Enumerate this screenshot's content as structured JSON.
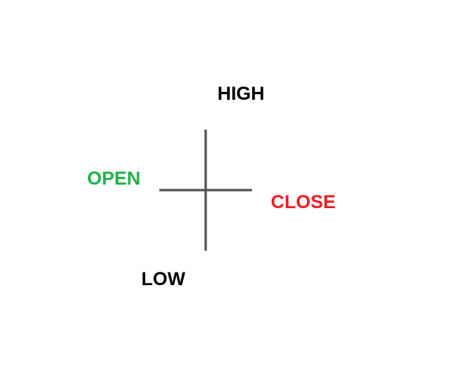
{
  "diagram": {
    "labels": {
      "high": "HIGH",
      "open": "OPEN",
      "close": "CLOSE",
      "low": "LOW"
    },
    "colors": {
      "high": "#000000",
      "open": "#22b14c",
      "close": "#ed1c24",
      "low": "#000000",
      "line": "#505050"
    }
  }
}
